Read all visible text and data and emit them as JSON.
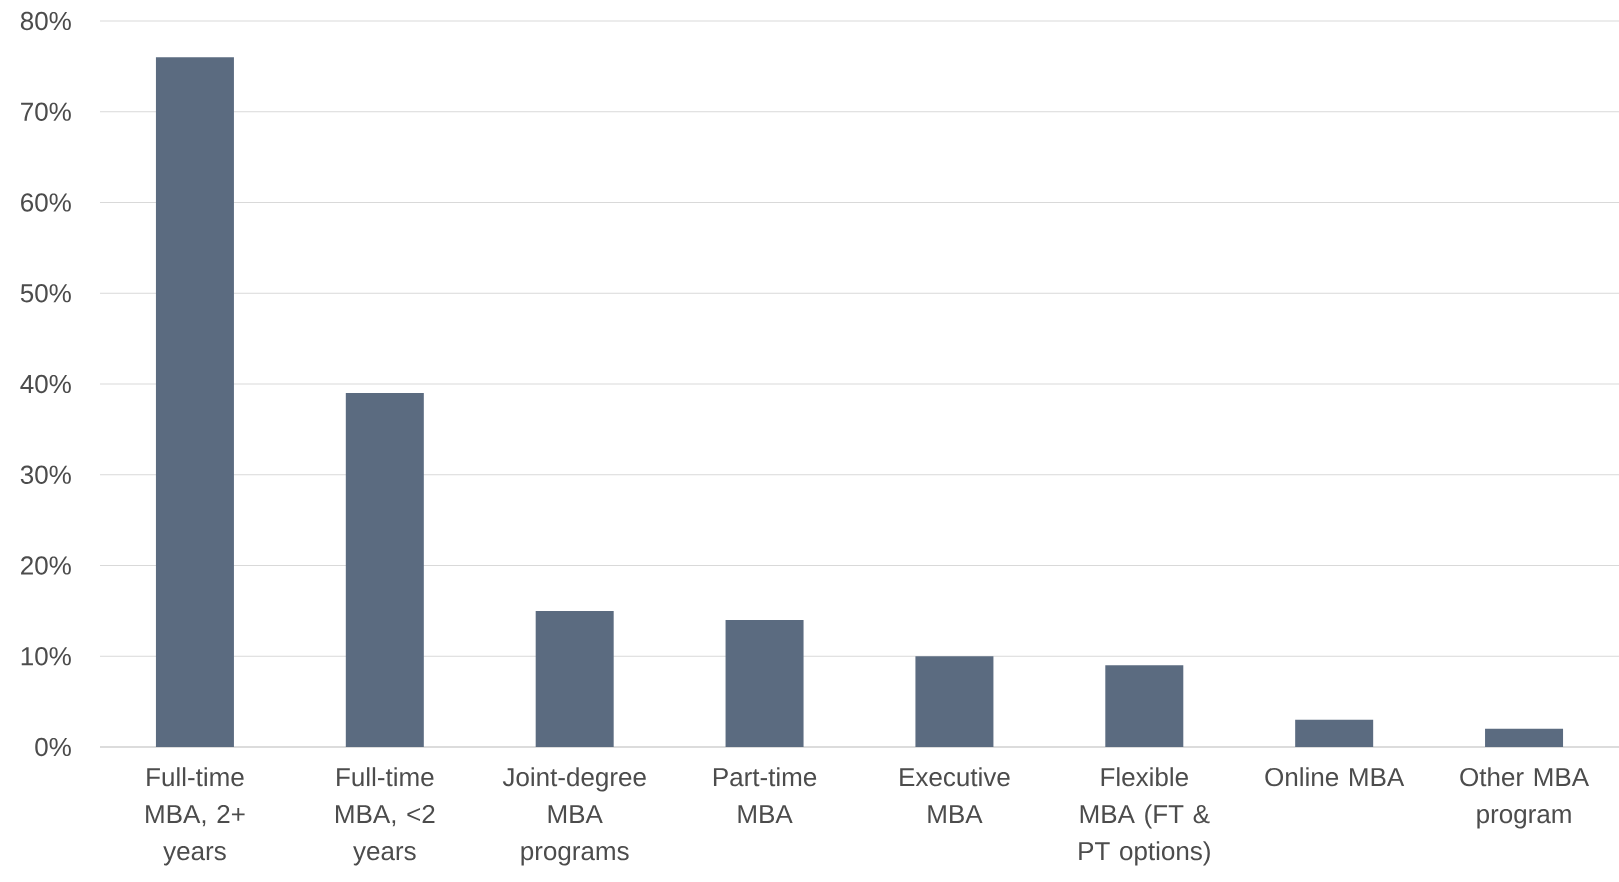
{
  "chart_data": {
    "type": "bar",
    "categories": [
      "Full-time MBA, 2+ years",
      "Full-time MBA, <2 years",
      "Joint-degree MBA programs",
      "Part-time MBA",
      "Executive MBA",
      "Flexible MBA (FT & PT options)",
      "Online MBA",
      "Other MBA program"
    ],
    "values": [
      76,
      39,
      15,
      14,
      10,
      9,
      3,
      2
    ],
    "color": "#5b6b80",
    "ylim": [
      0,
      80
    ],
    "yticks": [
      {
        "value": 0,
        "label": "0%"
      },
      {
        "value": 10,
        "label": "10%"
      },
      {
        "value": 20,
        "label": "20%"
      },
      {
        "value": 30,
        "label": "30%"
      },
      {
        "value": 40,
        "label": "40%"
      },
      {
        "value": 50,
        "label": "50%"
      },
      {
        "value": 60,
        "label": "60%"
      },
      {
        "value": 70,
        "label": "70%"
      },
      {
        "value": 80,
        "label": "80%"
      }
    ],
    "grid": "y"
  }
}
